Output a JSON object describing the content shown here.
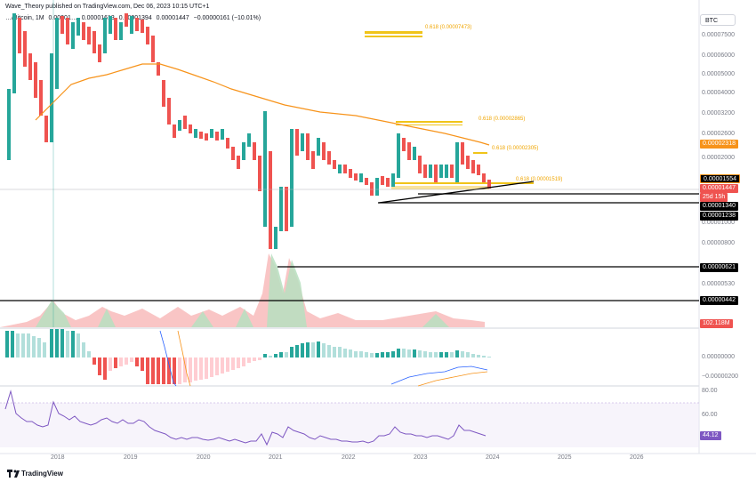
{
  "header": {
    "author": "Wave_Theory published on TradingView.com, Dec 06, 2023 10:15 UTC+1"
  },
  "symbol": {
    "pair": "…/Bitcoin, 1M",
    "ohlc": [
      "0.00001…",
      "0.00001613",
      "0.00001394",
      "0.00001447",
      "−0.00000161 (−10.01%)"
    ]
  },
  "currency": "BTC",
  "price_axis": [
    "0.00007500",
    "0.00006000",
    "0.00005000",
    "0.00004000",
    "0.00003200",
    "0.00002600",
    "0.00002000",
    "0.00001000",
    "0.00000800",
    "0.00000530"
  ],
  "tags": {
    "ema": "0.00002318",
    "t1": "0.00001554",
    "last": "0.00001447",
    "countdown": "25d 15h",
    "t2": "0.00001340",
    "t3": "0.00001238",
    "t4": "0.00000621",
    "t5": "0.00000442",
    "vol": "102.118M",
    "rsi": "44.12"
  },
  "fib_labels": {
    "f1": "0.618 (0.00007473)",
    "f2": "0.618 (0.00002865)",
    "f3": "0.618 (0.00002305)",
    "f4": "0.618 (0.00001519)"
  },
  "macd_axis": [
    "0.00000000",
    "−0.00000200"
  ],
  "rsi_axis": [
    "80.00",
    "60.00"
  ],
  "x_axis": [
    "2018",
    "2019",
    "2020",
    "2021",
    "2022",
    "2023",
    "2024",
    "2025",
    "2026"
  ],
  "footer": {
    "brand": "TradingView"
  },
  "colors": {
    "up": "#26a69a",
    "down": "#ef5350",
    "ema": "#f7931a",
    "fib": "#f0c419",
    "rsi": "#7e57c2",
    "support": "#000000"
  }
}
